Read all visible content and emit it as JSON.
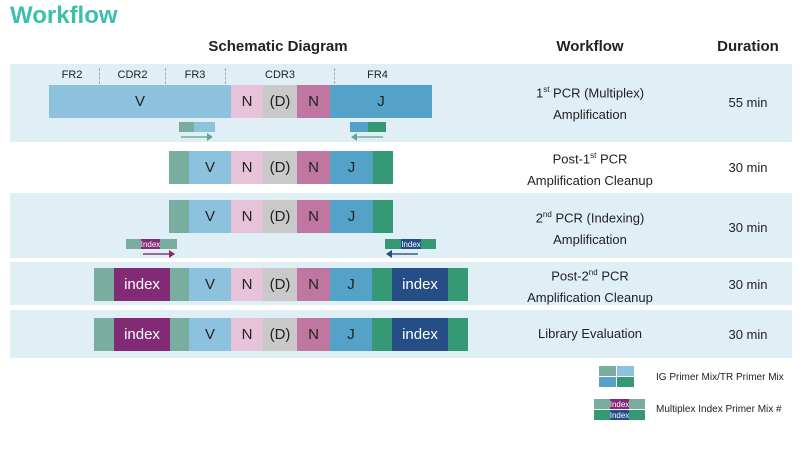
{
  "title": "Workflow",
  "headers": {
    "diagram": "Schematic Diagram",
    "workflow": "Workflow",
    "duration": "Duration"
  },
  "regions": [
    "FR2",
    "CDR2",
    "FR3",
    "CDR3",
    "FR4"
  ],
  "segments": {
    "v": "V",
    "n": "N",
    "d": "(D)",
    "j": "J",
    "index": "index",
    "index_small": "Index"
  },
  "steps": [
    {
      "pre": "1",
      "sup": "st",
      "post": " PCR (Multiplex)",
      "line2": "Amplification",
      "duration": "55 min"
    },
    {
      "pre": "Post-1",
      "sup": "st",
      "post": " PCR",
      "line2": "Amplification Cleanup",
      "duration": "30 min"
    },
    {
      "pre": "2",
      "sup": "nd",
      "post": " PCR (Indexing)",
      "line2": "Amplification",
      "duration": "30 min"
    },
    {
      "pre": "Post-2",
      "sup": "nd",
      "post": " PCR",
      "line2": "Amplification Cleanup",
      "duration": "30 min"
    },
    {
      "pre": "Library Evaluation",
      "sup": "",
      "post": "",
      "line2": "",
      "duration": "30 min"
    }
  ],
  "legend": [
    "IG Primer Mix/TR Primer Mix",
    "Multiplex Index Primer Mix #"
  ]
}
